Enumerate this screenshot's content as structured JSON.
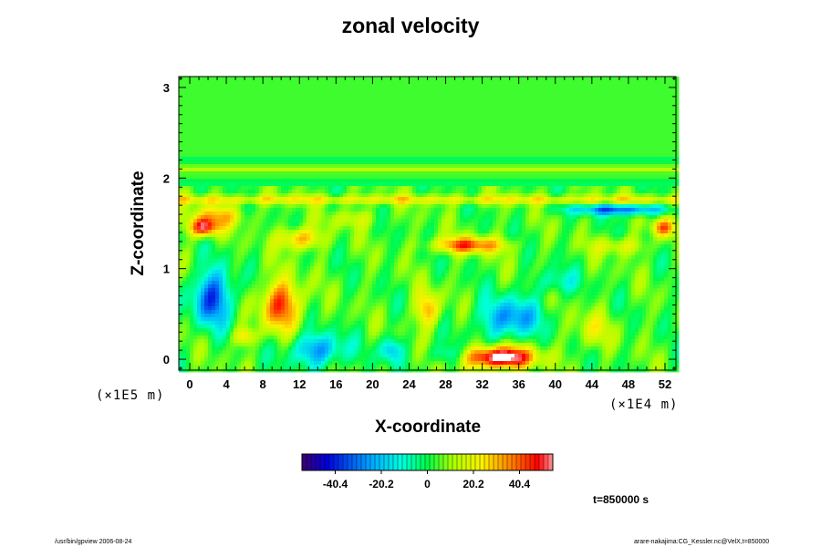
{
  "chart_data": {
    "type": "heatmap",
    "title": "zonal velocity",
    "xlabel": "X-coordinate",
    "ylabel": "Z-coordinate",
    "x_scale_note": "(×1E4 m)",
    "y_scale_note": "(×1E5 m)",
    "xlim": [
      -1.2,
      53.2
    ],
    "ylim": [
      -0.12,
      3.12
    ],
    "x_ticks": [
      0,
      4,
      8,
      12,
      16,
      20,
      24,
      28,
      32,
      36,
      40,
      44,
      48,
      52
    ],
    "y_ticks": [
      0,
      1,
      2,
      3
    ],
    "colorbar": {
      "ticks": [
        "-40.4",
        "-20.2",
        "0",
        "20.2",
        "40.4"
      ],
      "tick_values": [
        -40.4,
        -20.2,
        0,
        20.2,
        40.4
      ],
      "range": [
        -55,
        55
      ],
      "colormap": "rainbow"
    },
    "time_label": "t=850000 s",
    "background_value": 4,
    "features": [
      {
        "x": 34,
        "z": 0.02,
        "rx": 3.6,
        "rz": 0.12,
        "v": 62
      },
      {
        "x": 2.5,
        "z": 0.68,
        "rx": 2.2,
        "rz": 0.3,
        "v": -40
      },
      {
        "x": 10,
        "z": 0.6,
        "rx": 2.2,
        "rz": 0.27,
        "v": 40
      },
      {
        "x": 14,
        "z": 0.1,
        "rx": 3.0,
        "rz": 0.18,
        "v": -30
      },
      {
        "x": 35,
        "z": 0.45,
        "rx": 3.2,
        "rz": 0.22,
        "v": -32
      },
      {
        "x": 30.5,
        "z": 1.26,
        "rx": 3.8,
        "rz": 0.09,
        "v": 38
      },
      {
        "x": 1.5,
        "z": 1.45,
        "rx": 1.6,
        "rz": 0.1,
        "v": 46
      },
      {
        "x": 51.8,
        "z": 1.45,
        "rx": 1.2,
        "rz": 0.1,
        "v": 35
      },
      {
        "x": 12,
        "z": 1.33,
        "rx": 2.2,
        "rz": 0.12,
        "v": 30
      },
      {
        "x": 26,
        "z": 0.55,
        "rx": 1.3,
        "rz": 0.2,
        "v": 28
      },
      {
        "x": 22,
        "z": 0.1,
        "rx": 1.2,
        "rz": 0.14,
        "v": -25
      },
      {
        "x": 47,
        "z": 1.65,
        "rx": 5.0,
        "rz": 0.06,
        "v": -38
      },
      {
        "x": 3,
        "z": 1.58,
        "rx": 3.0,
        "rz": 0.12,
        "v": 22
      },
      {
        "x": 44,
        "z": 0.32,
        "rx": 2.2,
        "rz": 0.2,
        "v": 14
      },
      {
        "x": 6,
        "z": 0.25,
        "rx": 1.2,
        "rz": 0.1,
        "v": 22
      },
      {
        "x": 47,
        "z": 1.25,
        "rx": 3.0,
        "rz": 0.1,
        "v": 16
      },
      {
        "x": 18,
        "z": 1.55,
        "rx": 2.8,
        "rz": 0.1,
        "v": 12
      },
      {
        "x": 40,
        "z": 0.85,
        "rx": 2.5,
        "rz": 0.14,
        "v": -14
      },
      {
        "x": 28,
        "z": 0.05,
        "rx": 2.0,
        "rz": 0.1,
        "v": -14
      }
    ],
    "bands": [
      {
        "z": 1.76,
        "w": 0.05,
        "v": 18
      },
      {
        "z": 1.95,
        "w": 0.03,
        "v": -8
      },
      {
        "z": 2.1,
        "w": 0.03,
        "v": 10
      },
      {
        "z": 2.2,
        "w": 0.03,
        "v": -7
      }
    ]
  },
  "footer": {
    "left": "/usr/bin/gpview 2006-08-24",
    "right": "arare-nakajima:CG_Kessler.nc@VelX,t=850000"
  }
}
